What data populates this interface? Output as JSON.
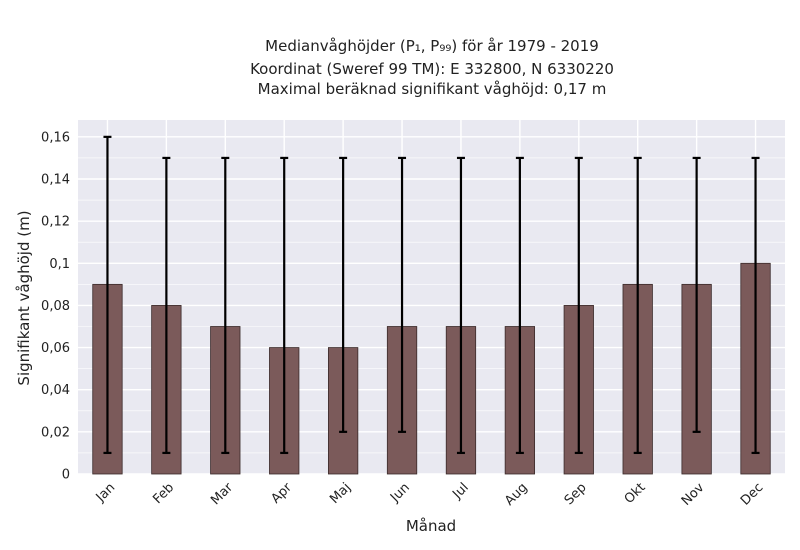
{
  "chart_data": {
    "type": "bar",
    "title_lines": [
      "Medianvåghöjder (P₁, P₉₉) för år 1979 - 2019",
      "Koordinat (Sweref 99 TM): E 332800, N 6330220",
      "Maximal beräknad signifikant våghöjd: 0,17 m"
    ],
    "xlabel": "Månad",
    "ylabel": "Signifikant våghöjd (m)",
    "categories": [
      "Jan",
      "Feb",
      "Mar",
      "Apr",
      "Maj",
      "Jun",
      "Jul",
      "Aug",
      "Sep",
      "Okt",
      "Nov",
      "Dec"
    ],
    "values": [
      0.09,
      0.08,
      0.07,
      0.06,
      0.06,
      0.07,
      0.07,
      0.07,
      0.08,
      0.09,
      0.09,
      0.1
    ],
    "error_low": [
      0.01,
      0.01,
      0.01,
      0.01,
      0.02,
      0.02,
      0.01,
      0.01,
      0.01,
      0.01,
      0.02,
      0.01
    ],
    "error_high": [
      0.16,
      0.15,
      0.15,
      0.15,
      0.15,
      0.15,
      0.15,
      0.15,
      0.15,
      0.15,
      0.15,
      0.15
    ],
    "ylim": [
      0,
      0.168
    ],
    "yticks": [
      0,
      0.02,
      0.04,
      0.06,
      0.08,
      0.1,
      0.12,
      0.14,
      0.16
    ],
    "ytick_labels": [
      "0",
      "0,02",
      "0,04",
      "0,06",
      "0,08",
      "0,1",
      "0,12",
      "0,14",
      "0,16"
    ],
    "grid": true,
    "colors": {
      "bar": "#7b5a5a",
      "bar_edge": "#3a2a2a",
      "plot_bg": "#e9e9f1",
      "grid": "#ffffff",
      "error": "#000000"
    }
  }
}
